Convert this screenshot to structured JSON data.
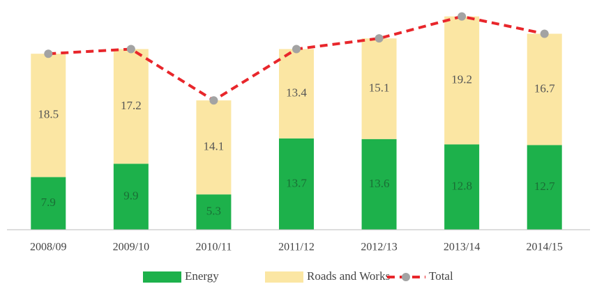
{
  "chart_data": {
    "type": "stacked_bar_line",
    "categories": [
      "2008/09",
      "2009/10",
      "2010/11",
      "2011/12",
      "2012/13",
      "2013/14",
      "2014/15"
    ],
    "series": [
      {
        "name": "Energy",
        "color": "#1db14b",
        "values": [
          7.9,
          9.9,
          5.3,
          13.7,
          13.6,
          12.8,
          12.7
        ]
      },
      {
        "name": "Roads and Works",
        "color": "#fbe6a3",
        "values": [
          18.5,
          17.2,
          14.1,
          13.4,
          15.1,
          19.2,
          16.7
        ]
      },
      {
        "name": "Total",
        "color": "#e8262b",
        "marker_color": "#a3a3a3",
        "line": true,
        "values": [
          26.4,
          27.1,
          19.4,
          27.1,
          28.7,
          32.0,
          29.4
        ]
      }
    ],
    "ylim": [
      0,
      33
    ]
  }
}
